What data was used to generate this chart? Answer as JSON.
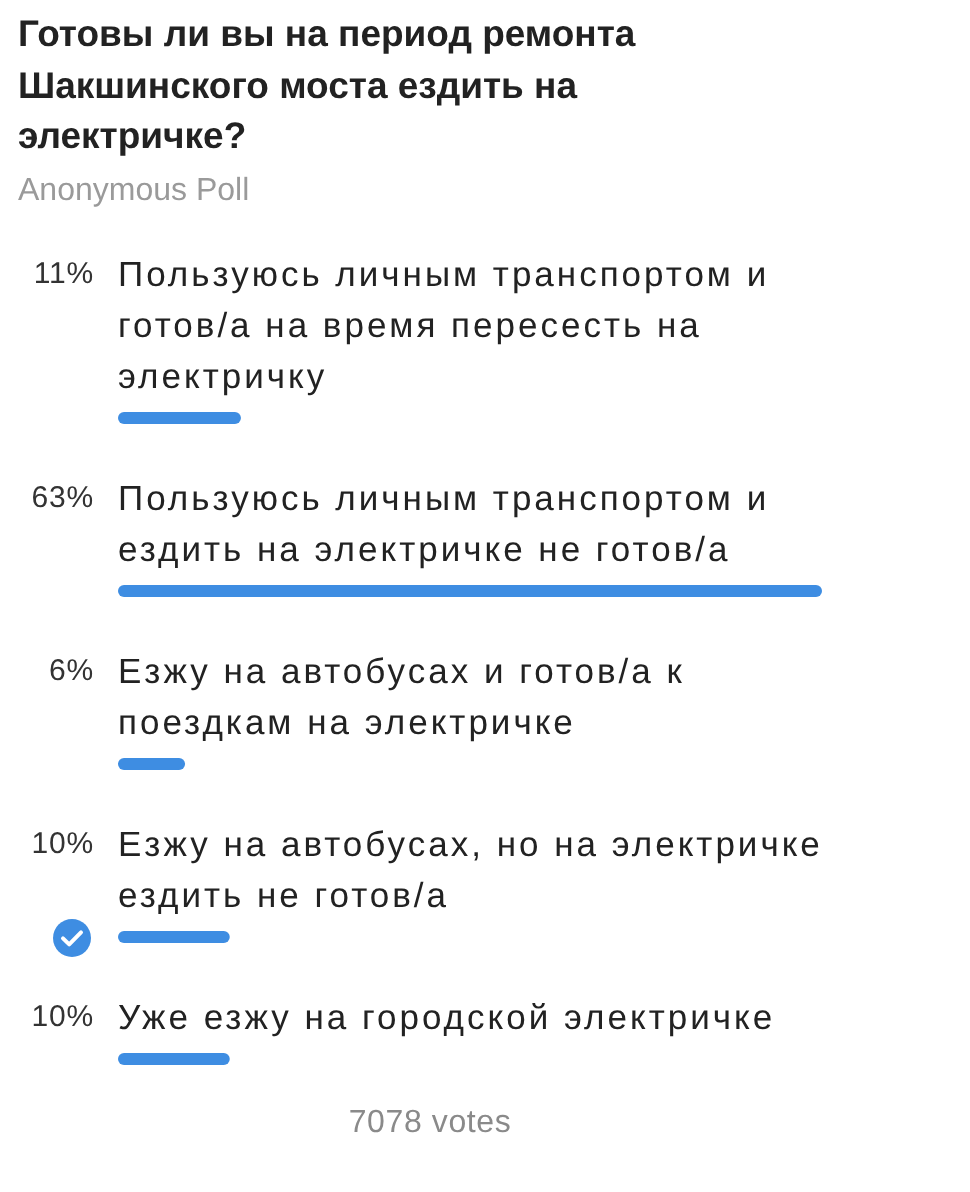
{
  "chart_data": {
    "type": "bar",
    "orientation": "horizontal",
    "title": "Готовы ли вы на период ремонта Шакшинского моста ездить на электричке?",
    "subtitle": "Anonymous Poll",
    "categories": [
      "Пользуюсь личным транспортом и готов/а на время пересесть на электричку",
      "Пользуюсь личным транспортом и ездить на электричке не готов/а",
      "Езжу на автобусах и готов/а к поездкам на электричке",
      "Езжу на автобусах, но на электричке ездить не готов/а",
      "Уже езжу на городской электричке"
    ],
    "values": [
      11,
      63,
      6,
      10,
      10
    ],
    "value_labels": [
      "11%",
      "63%",
      "6%",
      "10%",
      "10%"
    ],
    "color": "#3e8de2",
    "annotations": [
      "7078 votes"
    ]
  }
}
